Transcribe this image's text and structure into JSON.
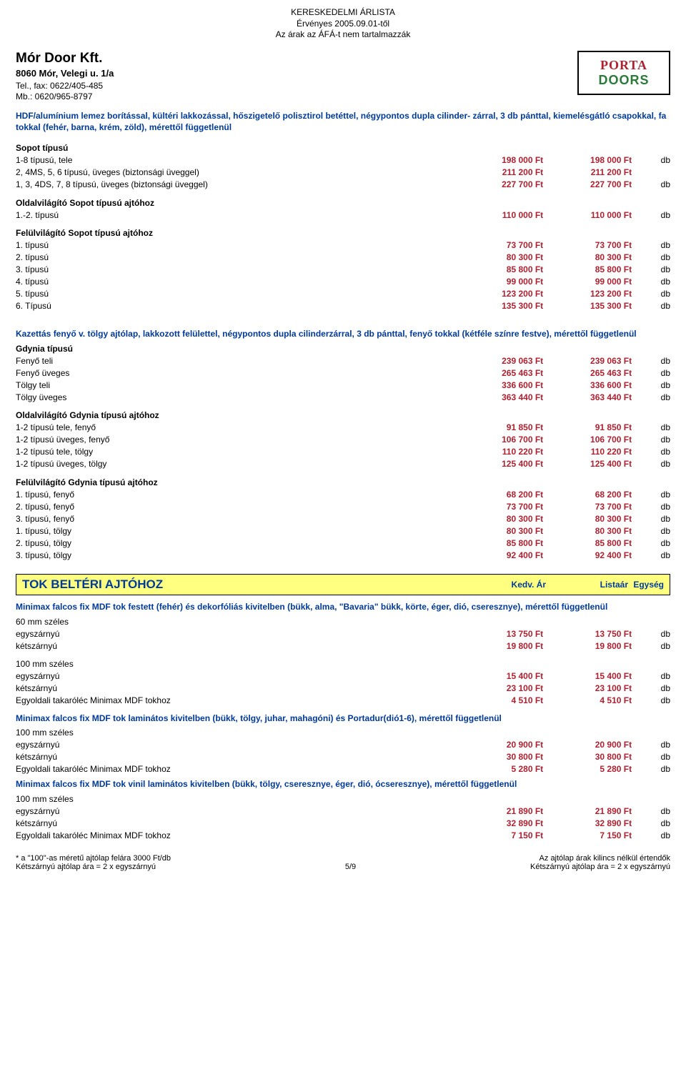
{
  "header": {
    "line1": "KERESKEDELMI ÁRLISTA",
    "line2": "Érvényes 2005.09.01-től",
    "line3": "Az árak az ÁFÁ-t nem tartalmazzák"
  },
  "company": {
    "name": "Mór Door Kft.",
    "address": "8060 Mór, Velegi u. 1/a",
    "tel": "Tel., fax: 0622/405-485",
    "mobile": "Mb.: 0620/965-8797"
  },
  "logo": {
    "line1": "PORTA",
    "line2": "DOORS"
  },
  "intro1": "HDF/alumínium lemez borítással, kültéri lakkozással, hőszigetelő polisztirol betéttel, négypontos dupla cilinder- zárral, 3 db pánttal, kiemelésgátló csapokkal, fa tokkal (fehér, barna, krém, zöld), mérettől függetlenül",
  "sopot_head": "Sopot típusú",
  "sopot": [
    {
      "d": "1-8 típusú, tele",
      "p1": "198 000 Ft",
      "p2": "198 000 Ft",
      "u": "db"
    },
    {
      "d": "2, 4MS, 5, 6 típusú, üveges (biztonsági üveggel)",
      "p1": "211 200 Ft",
      "p2": "211 200 Ft",
      "u": ""
    },
    {
      "d": "1, 3, 4DS, 7, 8 típusú, üveges (biztonsági üveggel)",
      "p1": "227 700 Ft",
      "p2": "227 700 Ft",
      "u": "db"
    }
  ],
  "oldal_sopot_head": "Oldalvilágító Sopot típusú ajtóhoz",
  "oldal_sopot": [
    {
      "d": "1.-2. típusú",
      "p1": "110 000 Ft",
      "p2": "110 000 Ft",
      "u": "db"
    }
  ],
  "felul_sopot_head": "Felülvilágító Sopot típusú ajtóhoz",
  "felul_sopot": [
    {
      "d": "1. típusú",
      "p1": "73 700 Ft",
      "p2": "73 700 Ft",
      "u": "db"
    },
    {
      "d": "2. típusú",
      "p1": "80 300 Ft",
      "p2": "80 300 Ft",
      "u": "db"
    },
    {
      "d": "3. típusú",
      "p1": "85 800 Ft",
      "p2": "85 800 Ft",
      "u": "db"
    },
    {
      "d": "4. típusú",
      "p1": "99 000 Ft",
      "p2": "99 000 Ft",
      "u": "db"
    },
    {
      "d": "5. típusú",
      "p1": "123 200 Ft",
      "p2": "123 200 Ft",
      "u": "db"
    },
    {
      "d": "6. Típusú",
      "p1": "135 300 Ft",
      "p2": "135 300 Ft",
      "u": "db"
    }
  ],
  "intro2": "Kazettás fenyő v. tölgy ajtólap, lakkozott felülettel, négypontos dupla cilinderzárral, 3 db pánttal, fenyő tokkal (kétféle színre festve), mérettől függetlenül",
  "gdynia_head": "Gdynia típusú",
  "gdynia": [
    {
      "d": "Fenyő teli",
      "p1": "239 063 Ft",
      "p2": "239 063 Ft",
      "u": "db"
    },
    {
      "d": "Fenyő üveges",
      "p1": "265 463 Ft",
      "p2": "265 463 Ft",
      "u": "db"
    },
    {
      "d": "Tölgy teli",
      "p1": "336 600 Ft",
      "p2": "336 600 Ft",
      "u": "db"
    },
    {
      "d": "Tölgy üveges",
      "p1": "363 440 Ft",
      "p2": "363 440 Ft",
      "u": "db"
    }
  ],
  "oldal_gdynia_head": "Oldalvilágító Gdynia típusú ajtóhoz",
  "oldal_gdynia": [
    {
      "d": "1-2 típusú tele, fenyő",
      "p1": "91 850 Ft",
      "p2": "91 850 Ft",
      "u": "db"
    },
    {
      "d": "1-2 típusú üveges, fenyő",
      "p1": "106 700 Ft",
      "p2": "106 700 Ft",
      "u": "db"
    },
    {
      "d": "1-2 típusú tele, tölgy",
      "p1": "110 220 Ft",
      "p2": "110 220 Ft",
      "u": "db"
    },
    {
      "d": "1-2 típusú üveges, tölgy",
      "p1": "125 400 Ft",
      "p2": "125 400 Ft",
      "u": "db"
    }
  ],
  "felul_gdynia_head": "Felülvilágító Gdynia típusú ajtóhoz",
  "felul_gdynia": [
    {
      "d": "1. típusú, fenyő",
      "p1": "68 200 Ft",
      "p2": "68 200 Ft",
      "u": "db"
    },
    {
      "d": "2. típusú, fenyő",
      "p1": "73 700 Ft",
      "p2": "73 700 Ft",
      "u": "db"
    },
    {
      "d": "3. típusú, fenyő",
      "p1": "80 300 Ft",
      "p2": "80 300 Ft",
      "u": "db"
    },
    {
      "d": "1. típusú, tölgy",
      "p1": "80 300 Ft",
      "p2": "80 300 Ft",
      "u": "db"
    },
    {
      "d": "2. típusú, tölgy",
      "p1": "85 800 Ft",
      "p2": "85 800 Ft",
      "u": "db"
    },
    {
      "d": "3. típusú, tölgy",
      "p1": "92 400 Ft",
      "p2": "92 400 Ft",
      "u": "db"
    }
  ],
  "section": {
    "title": "TOK BELTÉRI AJTÓHOZ",
    "c1": "Kedv. Ár",
    "c2": "Listaár",
    "c3": "Egység"
  },
  "intro3": "Minimax falcos fix MDF tok festett (fehér) és dekorfóliás kivitelben (bükk, alma, \"Bavaria\" bükk, körte, éger, dió, cseresznye), mérettől függetlenül",
  "mm60_head": "60 mm széles",
  "mm60": [
    {
      "d": "egyszárnyú",
      "p1": "13 750 Ft",
      "p2": "13 750 Ft",
      "u": "db"
    },
    {
      "d": "kétszárnyú",
      "p1": "19 800 Ft",
      "p2": "19 800 Ft",
      "u": "db"
    }
  ],
  "mm100_head": "100 mm széles",
  "mm100": [
    {
      "d": "egyszárnyú",
      "p1": "15 400 Ft",
      "p2": "15 400 Ft",
      "u": "db"
    },
    {
      "d": "kétszárnyú",
      "p1": "23 100 Ft",
      "p2": "23 100 Ft",
      "u": "db"
    },
    {
      "d": "Egyoldali takaróléc Minimax MDF tokhoz",
      "p1": "4 510 Ft",
      "p2": "4 510 Ft",
      "u": "db"
    }
  ],
  "intro4": "Minimax falcos fix MDF tok laminátos kivitelben (bükk, tölgy, juhar, mahagóni) és Portadur(dió1-6), mérettől függetlenül",
  "lam_head": "100 mm széles",
  "lam": [
    {
      "d": "egyszárnyú",
      "p1": "20 900 Ft",
      "p2": "20 900 Ft",
      "u": "db"
    },
    {
      "d": "kétszárnyú",
      "p1": "30 800 Ft",
      "p2": "30 800 Ft",
      "u": "db"
    },
    {
      "d": "Egyoldali takaróléc Minimax MDF tokhoz",
      "p1": "5 280 Ft",
      "p2": "5 280 Ft",
      "u": "db"
    }
  ],
  "intro5": "Minimax falcos fix MDF tok vinil laminátos kivitelben (bükk, tölgy, cseresznye, éger, dió, ócseresznye), mérettől függetlenül",
  "vin_head": "100 mm széles",
  "vin": [
    {
      "d": "egyszárnyú",
      "p1": "21 890 Ft",
      "p2": "21 890 Ft",
      "u": "db"
    },
    {
      "d": "kétszárnyú",
      "p1": "32 890 Ft",
      "p2": "32 890 Ft",
      "u": "db"
    },
    {
      "d": "Egyoldali takaróléc Minimax MDF tokhoz",
      "p1": "7 150 Ft",
      "p2": "7 150 Ft",
      "u": "db"
    }
  ],
  "footer": {
    "l1": "* a \"100\"-as méretű ajtólap felára 3000 Ft/db",
    "l2": "Kétszárnyú ajtólap ára = 2 x egyszárnyú",
    "c": "5/9",
    "r1": "Az ajtólap árak kilincs nélkül értendők",
    "r2": "Kétszárnyú ajtólap ára = 2 x egyszárnyú"
  }
}
